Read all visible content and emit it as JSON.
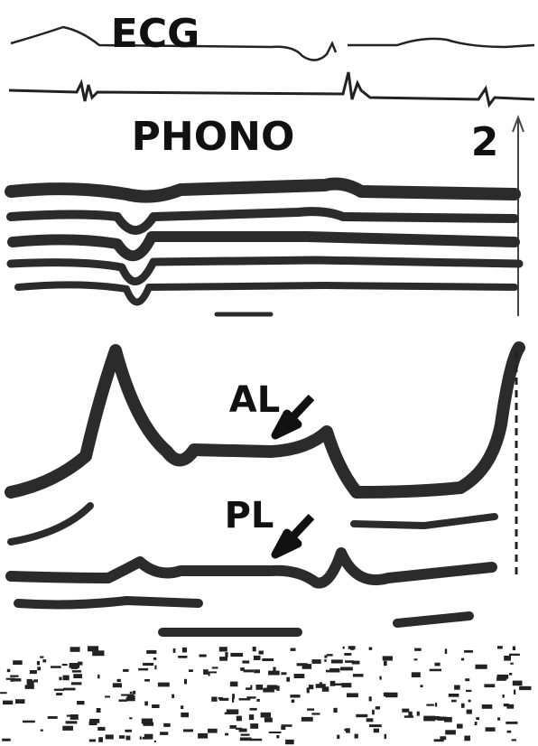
{
  "labels": {
    "ecg": "ECG",
    "phono": "PHONO",
    "marker": "2",
    "al": "AL",
    "pl": "PL"
  }
}
